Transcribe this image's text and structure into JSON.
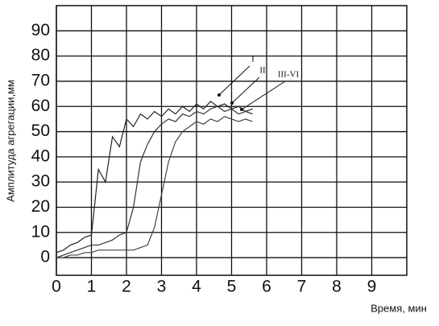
{
  "chart_data": {
    "type": "line",
    "x_label": "Время, мин",
    "y_label": "Амплитуда агрегации,мм",
    "x": [
      0,
      0.2,
      0.4,
      0.6,
      0.8,
      1.0,
      1.2,
      1.4,
      1.6,
      1.8,
      2.0,
      2.2,
      2.4,
      2.6,
      2.8,
      3.0,
      3.2,
      3.4,
      3.6,
      3.8,
      4.0,
      4.2,
      4.4,
      4.6,
      4.8,
      5.0,
      5.2,
      5.4,
      5.6
    ],
    "series": [
      {
        "name": "I",
        "color": "#222222",
        "values": [
          2,
          3,
          5,
          6,
          8,
          9,
          35,
          30,
          48,
          44,
          55,
          52,
          57,
          55,
          58,
          56,
          59,
          57,
          60,
          58,
          61,
          59,
          62,
          60,
          61,
          59,
          60,
          58,
          59
        ]
      },
      {
        "name": "II",
        "color": "#333333",
        "values": [
          0,
          1,
          2,
          3,
          4,
          5,
          5,
          6,
          7,
          9,
          10,
          20,
          38,
          45,
          50,
          53,
          55,
          54,
          57,
          56,
          58,
          57,
          59,
          60,
          58,
          59,
          57,
          58,
          57
        ]
      },
      {
        "name": "III-VI",
        "color": "#444444",
        "values": [
          0,
          0,
          1,
          1,
          2,
          2,
          3,
          3,
          3,
          3,
          3,
          3,
          4,
          5,
          12,
          25,
          38,
          46,
          50,
          52,
          54,
          53,
          55,
          54,
          56,
          55,
          54,
          55,
          54
        ]
      }
    ],
    "xlim": [
      0,
      10
    ],
    "ylim": [
      -7,
      100
    ],
    "xticks": [
      0,
      1,
      2,
      3,
      4,
      5,
      6,
      7,
      8,
      9
    ],
    "yticks": [
      0,
      10,
      20,
      30,
      40,
      50,
      60,
      70,
      80,
      90
    ],
    "grid": true
  }
}
